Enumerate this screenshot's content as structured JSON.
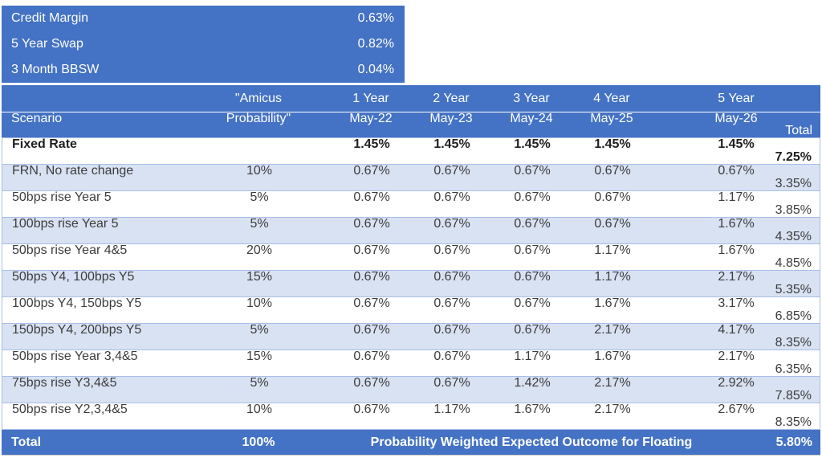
{
  "colors": {
    "header_blue": "#4472C4",
    "band_blue": "#D9E2F3",
    "border_blue": "#A8BEE6"
  },
  "rates_panel": {
    "items": [
      {
        "label": "Credit Margin",
        "value": "0.63%"
      },
      {
        "label": "5 Year Swap",
        "value": "0.82%"
      },
      {
        "label": "3 Month BBSW",
        "value": "0.04%"
      }
    ]
  },
  "table": {
    "header": {
      "row1": {
        "scenario": "",
        "probability": "\"Amicus",
        "years": [
          "1 Year",
          "2 Year",
          "3 Year",
          "4 Year",
          "5 Year"
        ],
        "total": ""
      },
      "row2": {
        "scenario": "Scenario",
        "probability": "Probability\"",
        "years": [
          "May-22",
          "May-23",
          "May-24",
          "May-25",
          "May-26"
        ],
        "total": "Total"
      }
    },
    "rows": [
      {
        "scenario": "Fixed Rate",
        "probability": "",
        "values": [
          "1.45%",
          "1.45%",
          "1.45%",
          "1.45%",
          "1.45%"
        ],
        "total": "7.25%"
      },
      {
        "scenario": "FRN, No rate change",
        "probability": "10%",
        "values": [
          "0.67%",
          "0.67%",
          "0.67%",
          "0.67%",
          "0.67%"
        ],
        "total": "3.35%"
      },
      {
        "scenario": "50bps rise Year 5",
        "probability": "5%",
        "values": [
          "0.67%",
          "0.67%",
          "0.67%",
          "0.67%",
          "1.17%"
        ],
        "total": "3.85%"
      },
      {
        "scenario": "100bps rise Year 5",
        "probability": "5%",
        "values": [
          "0.67%",
          "0.67%",
          "0.67%",
          "0.67%",
          "1.67%"
        ],
        "total": "4.35%"
      },
      {
        "scenario": "50bps rise Year 4&5",
        "probability": "20%",
        "values": [
          "0.67%",
          "0.67%",
          "0.67%",
          "1.17%",
          "1.67%"
        ],
        "total": "4.85%"
      },
      {
        "scenario": "50bps Y4, 100bps Y5",
        "probability": "15%",
        "values": [
          "0.67%",
          "0.67%",
          "0.67%",
          "1.17%",
          "2.17%"
        ],
        "total": "5.35%"
      },
      {
        "scenario": "100bps Y4, 150bps Y5",
        "probability": "10%",
        "values": [
          "0.67%",
          "0.67%",
          "0.67%",
          "1.67%",
          "3.17%"
        ],
        "total": "6.85%"
      },
      {
        "scenario": "150bps Y4, 200bps Y5",
        "probability": "5%",
        "values": [
          "0.67%",
          "0.67%",
          "0.67%",
          "2.17%",
          "4.17%"
        ],
        "total": "8.35%"
      },
      {
        "scenario": "50bps rise Year 3,4&5",
        "probability": "15%",
        "values": [
          "0.67%",
          "0.67%",
          "1.17%",
          "1.67%",
          "2.17%"
        ],
        "total": "6.35%"
      },
      {
        "scenario": "75bps rise Y3,4&5",
        "probability": "5%",
        "values": [
          "0.67%",
          "0.67%",
          "1.42%",
          "2.17%",
          "2.92%"
        ],
        "total": "7.85%"
      },
      {
        "scenario": "50bps rise Y2,3,4&5",
        "probability": "10%",
        "values": [
          "0.67%",
          "1.17%",
          "1.67%",
          "2.17%",
          "2.67%"
        ],
        "total": "8.35%"
      }
    ],
    "footer": {
      "label": "Total",
      "probability": "100%",
      "message": "Probability Weighted Expected Outcome for Floating",
      "total": "5.80%"
    }
  }
}
